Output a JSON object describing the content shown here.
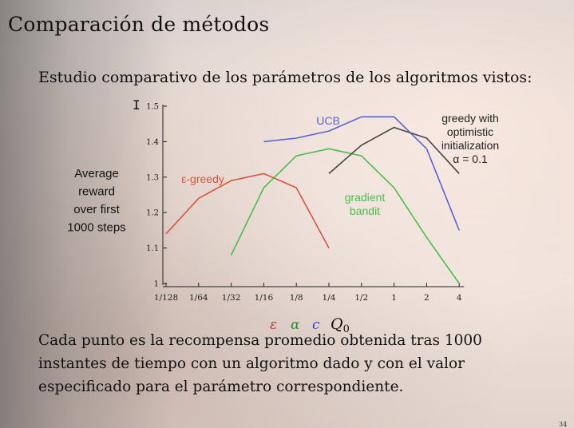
{
  "slide": {
    "title": "Comparación de métodos",
    "subtitle": "Estudio comparativo de los parámetros de los algoritmos vistos:",
    "caption": "Cada punto es la recompensa promedio obtenida tras 1000 instantes de tiempo con un algoritmo dado y con el valor especificado para el parámetro correspondiente.",
    "page_number": "34"
  },
  "chart_data": {
    "type": "line",
    "ylabel_lines": [
      "Average",
      "reward",
      "over first",
      "1000 steps"
    ],
    "x_tick_labels": [
      "1/128",
      "1/64",
      "1/32",
      "1/16",
      "1/8",
      "1/4",
      "1/2",
      "1",
      "2",
      "4"
    ],
    "y_tick_labels": [
      "1",
      "1.1",
      "1.2",
      "1.3",
      "1.4",
      "1.5"
    ],
    "ylim": [
      1,
      1.5
    ],
    "x_param_symbols": [
      {
        "label": "ε",
        "color": "#c0392b"
      },
      {
        "label": "α",
        "color": "#2e8b2e"
      },
      {
        "label": "c",
        "color": "#3a3ad0"
      },
      {
        "label": "Q0",
        "color": "#111111"
      }
    ],
    "series": [
      {
        "name": "ε-greedy",
        "color": "#d9533f",
        "x": [
          "1/128",
          "1/64",
          "1/32",
          "1/16",
          "1/8",
          "1/4"
        ],
        "values": [
          1.14,
          1.24,
          1.29,
          1.31,
          1.27,
          1.1
        ]
      },
      {
        "name": "gradient bandit",
        "name_lines": [
          "gradient",
          "bandit"
        ],
        "color": "#4cbc4c",
        "x": [
          "1/32",
          "1/16",
          "1/8",
          "1/4",
          "1/2",
          "1",
          "2",
          "4"
        ],
        "values": [
          1.08,
          1.27,
          1.36,
          1.38,
          1.36,
          1.27,
          1.13,
          1.0
        ]
      },
      {
        "name": "UCB",
        "color": "#5a63d6",
        "x": [
          "1/16",
          "1/8",
          "1/4",
          "1/2",
          "1",
          "2",
          "4"
        ],
        "values": [
          1.4,
          1.41,
          1.43,
          1.47,
          1.47,
          1.38,
          1.15
        ]
      },
      {
        "name": "greedy with optimistic initialization α = 0.1",
        "name_lines": [
          "greedy with",
          "optimistic",
          "initialization",
          "α = 0.1"
        ],
        "color": "#444444",
        "x": [
          "1/4",
          "1/2",
          "1",
          "2",
          "4"
        ],
        "values": [
          1.31,
          1.39,
          1.44,
          1.41,
          1.31
        ]
      }
    ]
  }
}
